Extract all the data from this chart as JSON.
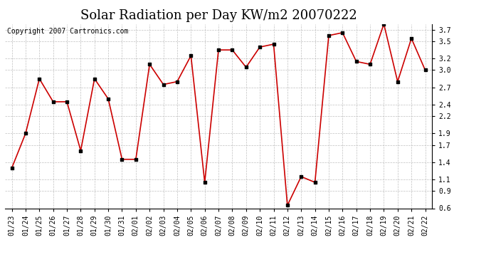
{
  "title": "Solar Radiation per Day KW/m2 20070222",
  "copyright": "Copyright 2007 Cartronics.com",
  "dates": [
    "01/23",
    "01/24",
    "01/25",
    "01/26",
    "01/27",
    "01/28",
    "01/29",
    "01/30",
    "01/31",
    "02/01",
    "02/02",
    "02/03",
    "02/04",
    "02/05",
    "02/06",
    "02/07",
    "02/08",
    "02/09",
    "02/10",
    "02/11",
    "02/12",
    "02/13",
    "02/14",
    "02/15",
    "02/16",
    "02/17",
    "02/18",
    "02/19",
    "02/20",
    "02/21",
    "02/22"
  ],
  "values": [
    1.3,
    1.9,
    2.85,
    2.45,
    2.45,
    1.6,
    2.85,
    2.5,
    1.45,
    1.45,
    3.1,
    2.75,
    2.8,
    3.25,
    1.05,
    3.35,
    3.35,
    3.05,
    3.4,
    3.45,
    0.65,
    1.15,
    1.05,
    3.6,
    3.65,
    3.15,
    3.1,
    3.8,
    2.8,
    3.55,
    3.0
  ],
  "line_color": "#cc0000",
  "marker_color": "#000000",
  "bg_color": "#ffffff",
  "grid_color": "#b0b0b0",
  "ylim": [
    0.6,
    3.8
  ],
  "yticks": [
    0.6,
    0.9,
    1.1,
    1.4,
    1.7,
    1.9,
    2.2,
    2.4,
    2.7,
    3.0,
    3.2,
    3.5,
    3.7
  ],
  "title_fontsize": 13,
  "tick_fontsize": 7,
  "copyright_fontsize": 7
}
